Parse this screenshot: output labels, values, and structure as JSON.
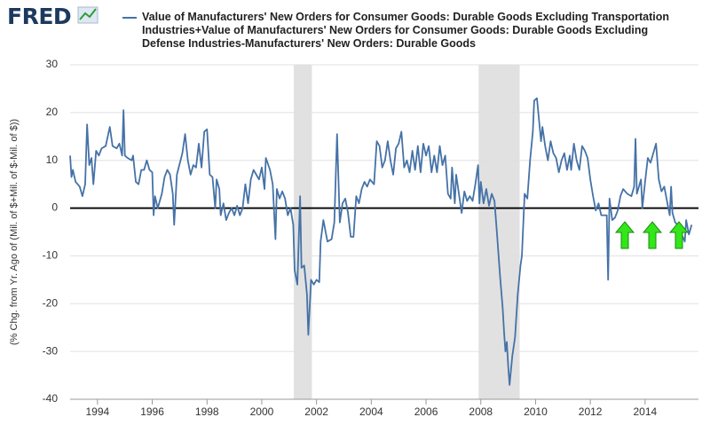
{
  "logo": "FRED",
  "chart_data": {
    "type": "line",
    "y_label": "(% Chg. from Yr. Ago of (Mil. of $+Mil. of $-Mil. of $))",
    "xlim": [
      1993.0,
      2015.95
    ],
    "xticks": [
      1994,
      1996,
      1998,
      2000,
      2002,
      2004,
      2006,
      2008,
      2010,
      2012,
      2014
    ],
    "ylim": [
      -40,
      30
    ],
    "yticks": [
      -40,
      -30,
      -20,
      -10,
      0,
      10,
      20,
      30
    ],
    "grid": true,
    "zero_line": true,
    "recessions": [
      [
        2001.17,
        2001.83
      ],
      [
        2007.92,
        2009.42
      ]
    ],
    "recession_color": "#e1e1e1",
    "x": [
      1993.0,
      1993.05,
      1993.1,
      1993.2,
      1993.35,
      1993.45,
      1993.55,
      1993.62,
      1993.7,
      1993.78,
      1993.85,
      1993.95,
      1994.05,
      1994.15,
      1994.3,
      1994.45,
      1994.55,
      1994.7,
      1994.8,
      1994.9,
      1994.95,
      1995.0,
      1995.1,
      1995.25,
      1995.3,
      1995.4,
      1995.5,
      1995.6,
      1995.7,
      1995.8,
      1995.9,
      1996.0,
      1996.05,
      1996.1,
      1996.2,
      1996.35,
      1996.45,
      1996.55,
      1996.65,
      1996.75,
      1996.8,
      1996.9,
      1997.1,
      1997.2,
      1997.3,
      1997.4,
      1997.5,
      1997.6,
      1997.7,
      1997.8,
      1997.9,
      1998.0,
      1998.1,
      1998.2,
      1998.3,
      1998.35,
      1998.45,
      1998.5,
      1998.6,
      1998.7,
      1998.8,
      1998.9,
      1999.0,
      1999.1,
      1999.2,
      1999.3,
      1999.4,
      1999.5,
      1999.6,
      1999.7,
      1999.8,
      1999.9,
      2000.0,
      2000.1,
      2000.15,
      2000.3,
      2000.4,
      2000.5,
      2000.55,
      2000.65,
      2000.75,
      2000.85,
      2000.95,
      2001.05,
      2001.15,
      2001.2,
      2001.3,
      2001.4,
      2001.45,
      2001.55,
      2001.65,
      2001.7,
      2001.8,
      2001.9,
      2002.0,
      2002.1,
      2002.15,
      2002.25,
      2002.3,
      2002.4,
      2002.55,
      2002.65,
      2002.75,
      2002.85,
      2002.95,
      2003.05,
      2003.15,
      2003.25,
      2003.35,
      2003.45,
      2003.55,
      2003.65,
      2003.75,
      2003.85,
      2003.95,
      2004.1,
      2004.2,
      2004.3,
      2004.4,
      2004.5,
      2004.6,
      2004.7,
      2004.8,
      2004.9,
      2005.0,
      2005.1,
      2005.2,
      2005.3,
      2005.4,
      2005.5,
      2005.6,
      2005.7,
      2005.8,
      2005.9,
      2006.0,
      2006.1,
      2006.2,
      2006.3,
      2006.4,
      2006.5,
      2006.6,
      2006.7,
      2006.8,
      2006.9,
      2006.95,
      2007.05,
      2007.1,
      2007.2,
      2007.3,
      2007.4,
      2007.5,
      2007.6,
      2007.7,
      2007.8,
      2007.9,
      2007.95,
      2008.0,
      2008.1,
      2008.2,
      2008.3,
      2008.4,
      2008.5,
      2008.6,
      2008.7,
      2008.8,
      2008.85,
      2008.9,
      2008.95,
      2009.0,
      2009.05,
      2009.15,
      2009.25,
      2009.35,
      2009.45,
      2009.5,
      2009.6,
      2009.7,
      2009.8,
      2009.9,
      2009.95,
      2010.05,
      2010.2,
      2010.25,
      2010.35,
      2010.45,
      2010.55,
      2010.65,
      2010.75,
      2010.85,
      2010.95,
      2011.05,
      2011.15,
      2011.25,
      2011.3,
      2011.4,
      2011.5,
      2011.6,
      2011.7,
      2011.8,
      2011.9,
      2012.0,
      2012.1,
      2012.2,
      2012.3,
      2012.4,
      2012.5,
      2012.6,
      2012.65,
      2012.7,
      2012.8,
      2012.9,
      2013.0,
      2013.1,
      2013.2,
      2013.35,
      2013.5,
      2013.6,
      2013.65,
      2013.7,
      2013.85,
      2013.9,
      2014.0,
      2014.1,
      2014.2,
      2014.3,
      2014.4,
      2014.5,
      2014.6,
      2014.7,
      2014.8,
      2014.9,
      2014.95,
      2015.0,
      2015.1,
      2015.2,
      2015.3,
      2015.45,
      2015.5,
      2015.6,
      2015.7
    ],
    "series": [
      {
        "name": "Value of Manufacturers' New Orders for Consumer Goods: Durable Goods Excluding Transportation Industries+Value of Manufacturers' New Orders for Consumer Goods: Durable Goods Excluding Defense Industries-Manufacturers' New Orders: Durable Goods",
        "color": "#4572a7",
        "values": [
          11,
          6.5,
          8,
          5.5,
          4.5,
          2.5,
          5,
          17.5,
          9,
          10.5,
          5,
          12,
          11,
          12.5,
          13,
          17,
          13,
          12.5,
          13.5,
          11,
          20.5,
          11,
          10.5,
          10,
          11,
          5.5,
          5,
          8,
          8,
          10,
          8,
          7.5,
          -1.5,
          2.5,
          0,
          3,
          6.5,
          8,
          7,
          3,
          -3.5,
          7,
          11.5,
          15.5,
          10,
          7,
          9,
          8.5,
          13.5,
          8.5,
          16,
          16.5,
          7,
          6.5,
          0,
          6,
          4,
          -1.5,
          1,
          -2.5,
          -1,
          0,
          -1.5,
          0.5,
          -1.5,
          0,
          5,
          1,
          6,
          8,
          7,
          6,
          8.5,
          4,
          10.5,
          8,
          5,
          -6.5,
          4,
          2,
          3.5,
          2,
          -1.5,
          0,
          -3.5,
          -13,
          -16,
          2.5,
          -12.5,
          -12,
          -18,
          -26.5,
          -15,
          -16,
          -15,
          -15.5,
          -7,
          -2.5,
          -4,
          -7,
          -6.5,
          -3,
          15.5,
          -3,
          1,
          2,
          -1,
          -6,
          -6,
          2.5,
          1,
          4,
          5.5,
          4.5,
          6,
          5,
          14,
          13,
          8.5,
          10,
          14,
          10,
          7,
          12.5,
          13.5,
          16,
          8.5,
          10,
          7.5,
          12,
          8,
          13,
          7.5,
          13.5,
          11,
          13,
          7.5,
          11,
          7.5,
          13,
          9,
          11,
          3,
          2,
          8.5,
          1,
          7,
          3,
          -1,
          3.5,
          1.5,
          2.5,
          1.5,
          5,
          9,
          1,
          5.5,
          1,
          4,
          0.5,
          3,
          1.5,
          -6,
          -14,
          -21,
          -26,
          -30,
          -28,
          -33,
          -37,
          -31,
          -27,
          -18,
          -12,
          -10,
          3,
          2,
          10,
          16,
          22.5,
          23,
          14,
          17,
          13,
          10,
          14,
          11.5,
          10.5,
          7.5,
          10,
          11.5,
          8,
          11,
          8,
          13.5,
          10,
          8,
          13,
          12,
          10.5,
          6,
          2.5,
          -0.5,
          1,
          -1.5,
          -1.5,
          -1.5,
          -15,
          2,
          -2.5,
          -2,
          -0.5,
          2.5,
          4,
          3,
          2.5,
          4.5,
          14.5,
          3,
          6,
          0,
          5.5,
          10.5,
          9.5,
          11.5,
          13.5,
          6,
          3.5,
          4.5,
          1.5,
          -1.5,
          4.5,
          -1,
          -3,
          -3.5,
          -5,
          -7,
          -2.5,
          -5.5,
          -3.5
        ]
      }
    ]
  }
}
